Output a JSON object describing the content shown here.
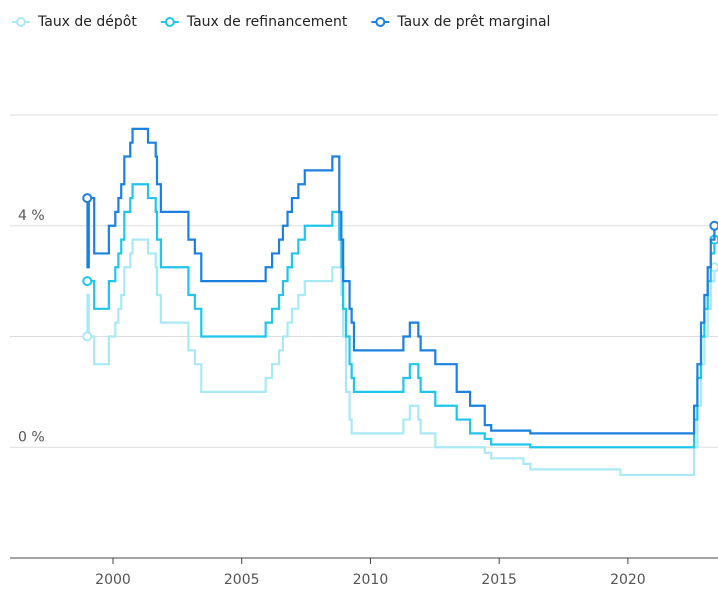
{
  "chart_data": {
    "type": "step-line",
    "x": [
      1999.0,
      1999.01,
      1999.06,
      1999.27,
      1999.84,
      2000.09,
      2000.21,
      2000.32,
      2000.44,
      2000.67,
      2000.76,
      2001.36,
      2001.66,
      2001.71,
      2001.86,
      2002.93,
      2003.18,
      2003.43,
      2005.93,
      2006.18,
      2006.45,
      2006.6,
      2006.78,
      2006.95,
      2007.2,
      2007.45,
      2008.52,
      2008.79,
      2008.87,
      2008.94,
      2009.05,
      2009.19,
      2009.27,
      2009.36,
      2011.28,
      2011.53,
      2011.86,
      2011.95,
      2012.52,
      2013.35,
      2013.87,
      2014.44,
      2014.69,
      2015.94,
      2016.21,
      2019.71,
      2022.57,
      2022.7,
      2022.84,
      2022.97,
      2023.1,
      2023.22,
      2023.36
    ],
    "series": [
      {
        "name": "Taux de dépôt",
        "color": "#a9e9f6",
        "values": [
          2.0,
          2.75,
          2.0,
          1.5,
          2.0,
          2.25,
          2.5,
          2.75,
          3.25,
          3.5,
          3.75,
          3.5,
          3.25,
          2.75,
          2.25,
          1.75,
          1.5,
          1.0,
          1.25,
          1.5,
          1.75,
          2.0,
          2.25,
          2.5,
          2.75,
          3.0,
          3.25,
          3.25,
          2.75,
          2.0,
          1.0,
          0.5,
          0.25,
          0.25,
          0.5,
          0.75,
          0.5,
          0.25,
          0.0,
          0.0,
          0.0,
          -0.1,
          -0.2,
          -0.3,
          -0.4,
          -0.5,
          0.0,
          0.75,
          1.5,
          2.0,
          2.5,
          3.0,
          3.25
        ]
      },
      {
        "name": "Taux de refinancement",
        "color": "#1ec6ee",
        "values": [
          3.0,
          3.0,
          3.0,
          2.5,
          3.0,
          3.25,
          3.5,
          3.75,
          4.25,
          4.5,
          4.75,
          4.5,
          4.25,
          3.75,
          3.25,
          2.75,
          2.5,
          2.0,
          2.25,
          2.5,
          2.75,
          3.0,
          3.25,
          3.5,
          3.75,
          4.0,
          4.25,
          3.75,
          3.25,
          2.5,
          2.0,
          1.5,
          1.25,
          1.0,
          1.25,
          1.5,
          1.25,
          1.0,
          0.75,
          0.5,
          0.25,
          0.15,
          0.05,
          0.05,
          0.0,
          0.0,
          0.5,
          1.25,
          2.0,
          2.5,
          3.0,
          3.5,
          3.75
        ]
      },
      {
        "name": "Taux de prêt marginal",
        "color": "#1b80e0",
        "values": [
          4.5,
          3.25,
          4.5,
          3.5,
          4.0,
          4.25,
          4.5,
          4.75,
          5.25,
          5.5,
          5.75,
          5.5,
          5.25,
          4.75,
          4.25,
          3.75,
          3.5,
          3.0,
          3.25,
          3.5,
          3.75,
          4.0,
          4.25,
          4.5,
          4.75,
          5.0,
          5.25,
          4.25,
          3.75,
          3.0,
          3.0,
          2.5,
          2.25,
          1.75,
          2.0,
          2.25,
          2.0,
          1.75,
          1.5,
          1.0,
          0.75,
          0.4,
          0.3,
          0.3,
          0.25,
          0.25,
          0.75,
          1.5,
          2.25,
          2.75,
          3.25,
          3.75,
          4.0
        ]
      }
    ],
    "xlim": [
      1996,
      2023.5
    ],
    "xticks": [
      2000,
      2005,
      2010,
      2015,
      2020
    ],
    "ylim": [
      -2,
      6
    ],
    "yticks": [
      {
        "value": 0,
        "label": "0 %"
      },
      {
        "value": 4,
        "label": "4 %"
      }
    ],
    "ygrid": [
      -2,
      2,
      6
    ],
    "grid": true,
    "legend": "top-left"
  }
}
